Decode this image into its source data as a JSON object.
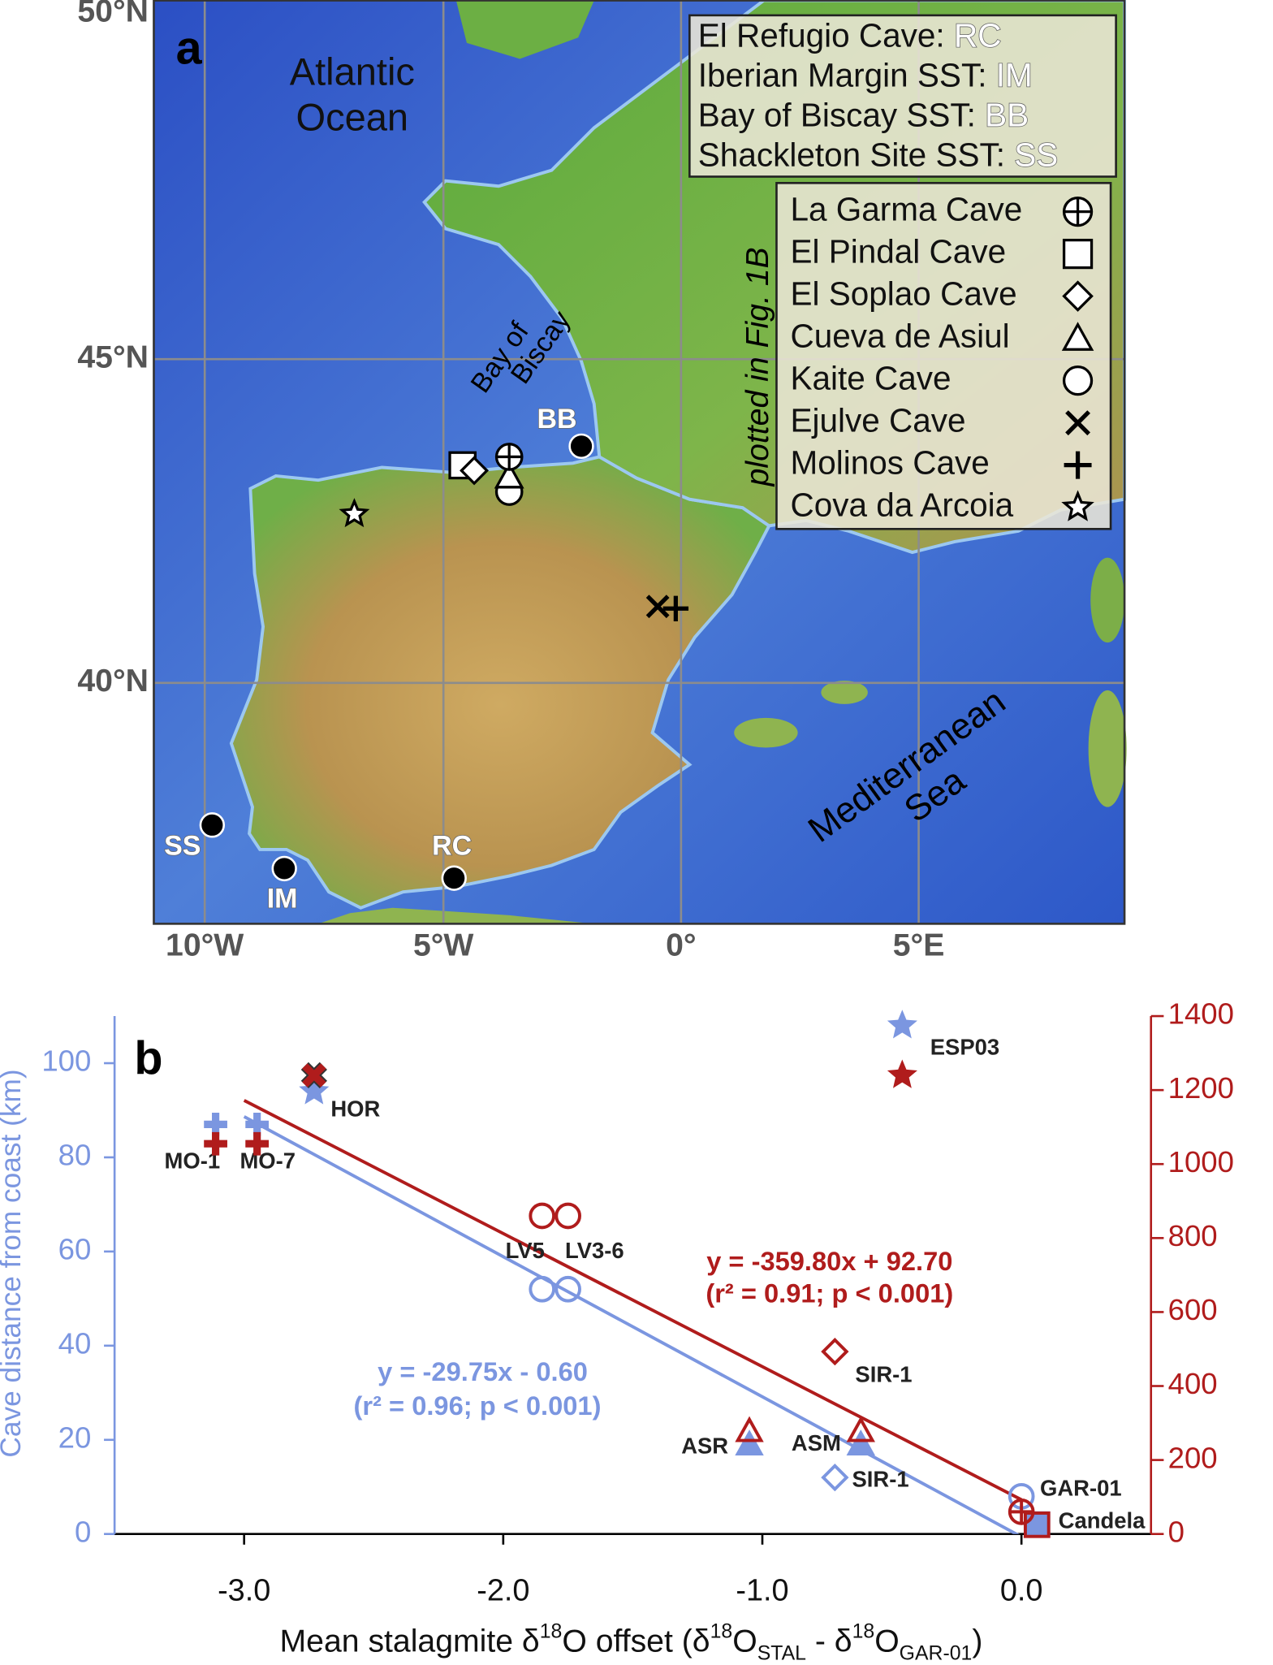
{
  "map": {
    "panel": "a",
    "lat_labels": [
      "50°N",
      "45°N",
      "40°N"
    ],
    "lon_labels": [
      "10°W",
      "5°W",
      "0°",
      "5°E"
    ],
    "ocean": [
      "Atlantic",
      "Ocean"
    ],
    "bay": [
      "Bay of",
      "Biscay"
    ],
    "sea": [
      "Mediterranean",
      "Sea"
    ],
    "note": "plotted in Fig. 1B",
    "sst_legend": [
      {
        "name": "El Refugio Cave: ",
        "code": "RC"
      },
      {
        "name": "Iberian Margin SST: ",
        "code": "IM"
      },
      {
        "name": "Bay of Biscay SST: ",
        "code": "BB"
      },
      {
        "name": "Shackleton Site SST: ",
        "code": "SS"
      }
    ],
    "cave_legend": [
      {
        "name": "La Garma Cave",
        "symbol": "circle-plus"
      },
      {
        "name": "El Pindal Cave",
        "symbol": "square"
      },
      {
        "name": "El Soplao Cave",
        "symbol": "diamond"
      },
      {
        "name": "Cueva de Asiul",
        "symbol": "triangle"
      },
      {
        "name": "Kaite Cave",
        "symbol": "circle"
      },
      {
        "name": "Ejulve Cave",
        "symbol": "x"
      },
      {
        "name": "Molinos Cave",
        "symbol": "plus"
      },
      {
        "name": "Cova da Arcoia",
        "symbol": "star"
      }
    ],
    "site_labels": [
      "BB",
      "RC",
      "IM",
      "SS"
    ]
  },
  "chart_data": {
    "type": "scatter",
    "panel": "b",
    "xlabel": [
      {
        "text": "Mean stalagmite δ"
      },
      {
        "text": "18",
        "script": "sup"
      },
      {
        "text": "O offset (δ"
      },
      {
        "text": "18",
        "script": "sup"
      },
      {
        "text": "O"
      },
      {
        "text": "STAL",
        "script": "sub"
      },
      {
        "text": " - δ"
      },
      {
        "text": "18",
        "script": "sup"
      },
      {
        "text": "O"
      },
      {
        "text": "GAR-01",
        "script": "sub"
      },
      {
        "text": ")"
      }
    ],
    "ylabel": "Cave distance from coast (km)",
    "xlim": [
      -3.5,
      0.5
    ],
    "xticks": [
      {
        "value": -3,
        "label": "-3.0"
      },
      {
        "value": -2,
        "label": "-2.0"
      },
      {
        "value": -1,
        "label": "-1.0"
      },
      {
        "value": 0,
        "label": "0.0"
      }
    ],
    "ylim": [
      0,
      110
    ],
    "yticks": [
      0,
      20,
      40,
      60,
      80,
      100
    ],
    "y2lim": [
      0,
      1400
    ],
    "y2ticks": [
      0,
      200,
      400,
      600,
      800,
      1000,
      1200,
      1400
    ],
    "grid": false,
    "x": [
      -3.11,
      -2.95,
      -2.73,
      -1.85,
      -1.75,
      -1.05,
      -0.62,
      -0.72,
      0,
      0.06,
      -0.46
    ],
    "series": [
      {
        "color": "#7b96e0",
        "axis": "y",
        "values": [
          87,
          87,
          94,
          52,
          52,
          19,
          19,
          12,
          8,
          2,
          108
        ],
        "markers": [
          "plus",
          "plus",
          "star",
          "circle",
          "circle",
          "triangle",
          "triangle",
          "diamond",
          "circle",
          "square",
          "star"
        ],
        "labels": [
          "MO-1",
          "MO-7",
          "HOR",
          "LV5",
          "LV3-6",
          "ASR",
          "ASM",
          "SIR-1",
          "GAR-01",
          "Candela",
          "ESP03"
        ]
      },
      {
        "color": "#b01c1c",
        "axis": "y2",
        "values": [
          1055,
          1055,
          1240,
          860,
          860,
          278,
          278,
          493,
          60,
          25,
          1240
        ],
        "markers": [
          "plus",
          "plus",
          "x",
          "circle",
          "circle",
          "triangle-open",
          "triangle-open",
          "diamond",
          "circle-plus",
          "square-open",
          "star"
        ],
        "labels": [
          null,
          null,
          null,
          null,
          null,
          null,
          null,
          "SIR-1",
          null,
          null,
          null
        ]
      }
    ],
    "fits": [
      {
        "axis": "y",
        "color": "#7b96e0",
        "slope": -29.75,
        "intercept": -0.6,
        "x_range": [
          -3.0,
          0.05
        ],
        "equation": "y = -29.75x - 0.60",
        "stats": "(r² = 0.96; p < 0.001)"
      },
      {
        "axis": "y2",
        "color": "#b01c1c",
        "slope": -359.8,
        "intercept": 92.7,
        "x_range": [
          -3.0,
          0.0
        ],
        "equation": "y = -359.80x + 92.70",
        "stats": "(r² = 0.91; p < 0.001)"
      }
    ]
  }
}
